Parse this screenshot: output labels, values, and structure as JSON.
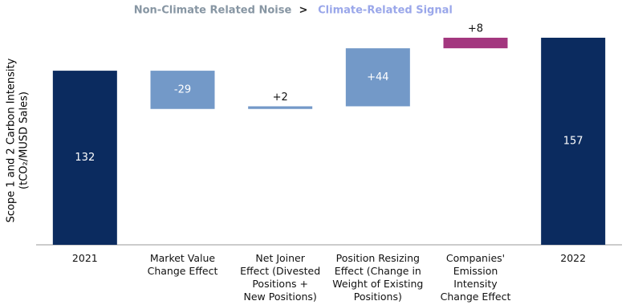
{
  "chart_data": {
    "type": "waterfall",
    "annotations": [
      {
        "text": "Non-Climate Related Noise",
        "color": "#8796a3"
      },
      {
        "text": ">",
        "color": "#222222"
      },
      {
        "text": "Climate-Related Signal",
        "color": "#9aa7ea"
      }
    ],
    "y_label": [
      "Scope 1 and 2 Carbon Intensity",
      "(tCO₂/MUSD Sales)"
    ],
    "categories": [
      "2021",
      "Market Value\nChange Effect",
      "Net Joiner\nEffect (Divested\nPositions +\nNew Positions)",
      "Position Resizing\nEffect (Change in\nWeight of Existing\nPositions)",
      "Companies'\nEmission\nIntensity\nChange Effect",
      "2022"
    ],
    "values": [
      132,
      -29,
      2,
      44,
      8,
      157
    ],
    "value_labels": [
      "132",
      "-29",
      "+2",
      "+44",
      "+8",
      "157"
    ],
    "totals": [
      true,
      false,
      false,
      false,
      false,
      true
    ],
    "colors": [
      "#0b2b5f",
      "#7399c8",
      "#7399c8",
      "#7399c8",
      "#a3377f",
      "#0b2b5f"
    ],
    "ylim": [
      0,
      185
    ]
  }
}
